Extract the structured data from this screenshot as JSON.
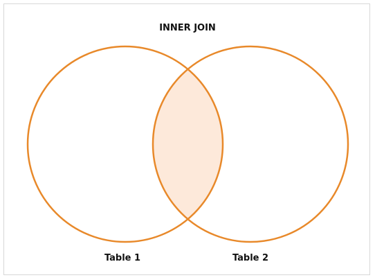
{
  "diagram": {
    "title": "INNER JOIN",
    "left_set_label": "Table 1",
    "right_set_label": "Table 2"
  },
  "colors": {
    "outline": "#E8892A",
    "intersection_fill": "#FDE9DA",
    "frame_border": "#D7D7D7",
    "text": "#111111"
  }
}
